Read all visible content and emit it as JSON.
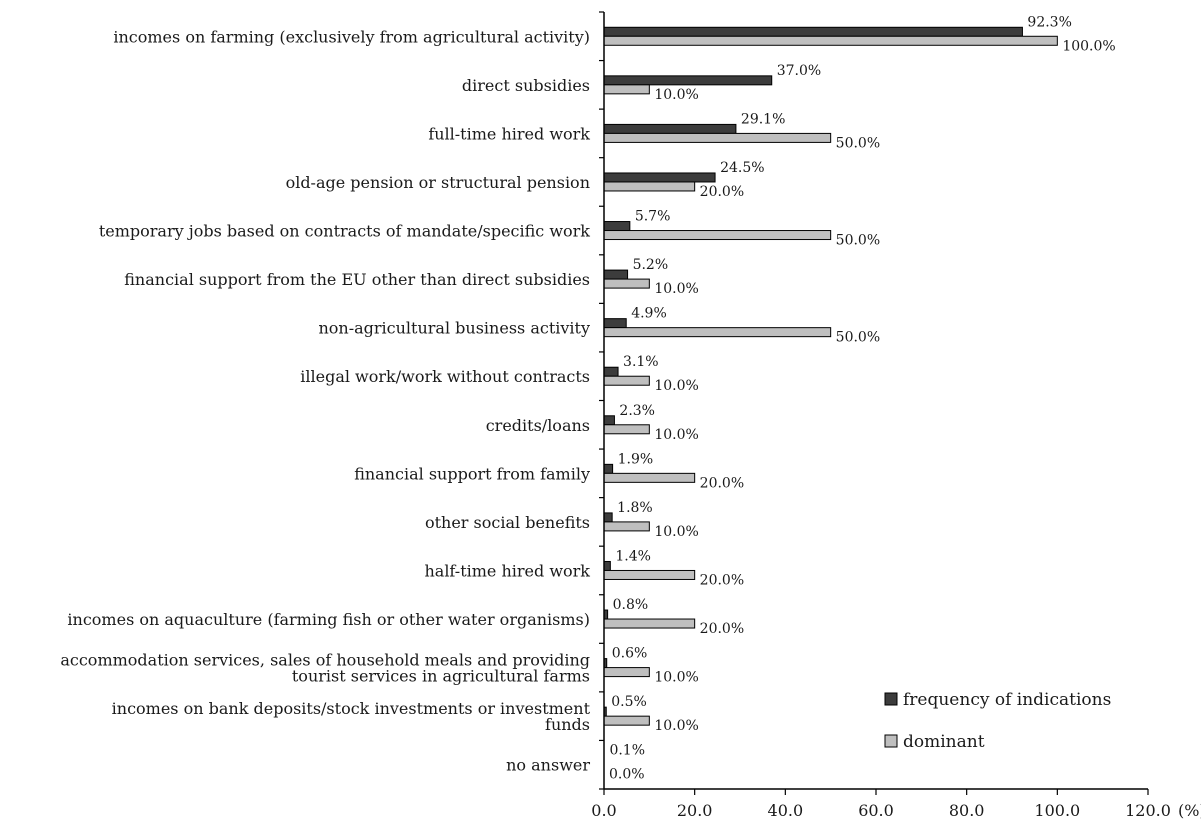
{
  "chart_data": {
    "type": "bar",
    "orientation": "horizontal",
    "categories": [
      "incomes on farming (exclusively from agricultural activity)",
      "direct subsidies",
      "full-time hired work",
      "old-age pension or structural pension",
      "temporary jobs based on contracts of mandate/specific work",
      "financial support from the EU other than direct subsidies",
      "non-agricultural business activity",
      "illegal work/work without contracts",
      "credits/loans",
      "financial support from family",
      "other social benefits",
      "half-time hired work",
      "incomes on aquaculture (farming fish or other water organisms)",
      "accommodation services,  sales of household meals and providing tourist services in agricultural farms",
      "incomes on bank deposits/stock investments or investment funds",
      "no answer"
    ],
    "category_lines": [
      [
        "incomes on farming (exclusively from agricultural activity)"
      ],
      [
        "direct subsidies"
      ],
      [
        "full-time hired work"
      ],
      [
        "old-age pension or structural pension"
      ],
      [
        "temporary jobs based on contracts of mandate/specific work"
      ],
      [
        "financial support from the EU other than direct subsidies"
      ],
      [
        "non-agricultural business activity"
      ],
      [
        "illegal work/work without contracts"
      ],
      [
        "credits/loans"
      ],
      [
        "financial support from family"
      ],
      [
        "other social benefits"
      ],
      [
        "half-time hired work"
      ],
      [
        "incomes on aquaculture (farming fish or other water organisms)"
      ],
      [
        "accommodation services,  sales of household meals and providing",
        "tourist services in agricultural farms"
      ],
      [
        "incomes on bank deposits/stock investments or investment",
        "funds"
      ],
      [
        "no answer"
      ]
    ],
    "series": [
      {
        "name": "frequency of indications",
        "color": "#3c3c3c",
        "values": [
          92.3,
          37.0,
          29.1,
          24.5,
          5.7,
          5.2,
          4.9,
          3.1,
          2.3,
          1.9,
          1.8,
          1.4,
          0.8,
          0.6,
          0.5,
          0.1
        ],
        "labels": [
          "92.3%",
          "37.0%",
          "29.1%",
          "24.5%",
          "5.7%",
          "5.2%",
          "4.9%",
          "3.1%",
          "2.3%",
          "1.9%",
          "1.8%",
          "1.4%",
          "0.8%",
          "0.6%",
          "0.5%",
          "0.1%"
        ]
      },
      {
        "name": "dominant",
        "color": "#bfbfbf",
        "values": [
          100.0,
          10.0,
          50.0,
          20.0,
          50.0,
          10.0,
          50.0,
          10.0,
          10.0,
          20.0,
          10.0,
          20.0,
          20.0,
          10.0,
          10.0,
          0.0
        ],
        "labels": [
          "100.0%",
          "10.0%",
          "50.0%",
          "20.0%",
          "50.0%",
          "10.0%",
          "50.0%",
          "10.0%",
          "10.0%",
          "20.0%",
          "10.0%",
          "20.0%",
          "20.0%",
          "10.0%",
          "10.0%",
          "0.0%"
        ]
      }
    ],
    "xlim": [
      0,
      120
    ],
    "xticks": [
      "0.0",
      "20.0",
      "40.0",
      "60.0",
      "80.0",
      "100.0",
      "120.0"
    ],
    "xunit": "(%)",
    "grid": false,
    "legend_position": "bottom-right"
  }
}
